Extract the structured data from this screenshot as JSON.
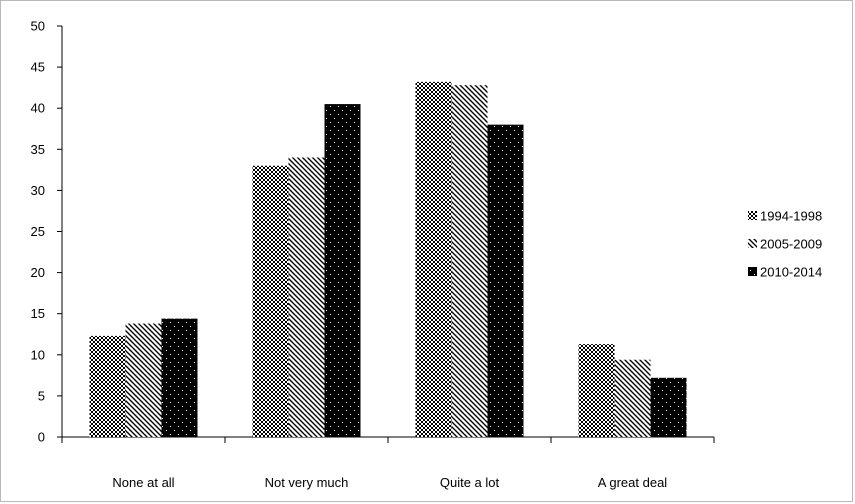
{
  "chart_data": {
    "type": "bar",
    "title": "",
    "xlabel": "",
    "ylabel": "",
    "categories": [
      "None at all",
      "Not very much",
      "Quite a lot",
      "A great deal"
    ],
    "ylim": [
      0,
      50
    ],
    "yticks": [
      0,
      5,
      10,
      15,
      20,
      25,
      30,
      35,
      40,
      45,
      50
    ],
    "grid": false,
    "legend_position": "right",
    "series": [
      {
        "name": "1994-1998",
        "values": [
          12.3,
          33.0,
          43.2,
          11.3
        ],
        "pattern": "checker",
        "color": "#000000"
      },
      {
        "name": "2005-2009",
        "values": [
          13.8,
          34.0,
          42.8,
          9.4
        ],
        "pattern": "diagonal",
        "color": "#000000"
      },
      {
        "name": "2010-2014",
        "values": [
          14.4,
          40.5,
          38.0,
          7.2
        ],
        "pattern": "dots",
        "color": "#000000"
      }
    ]
  }
}
